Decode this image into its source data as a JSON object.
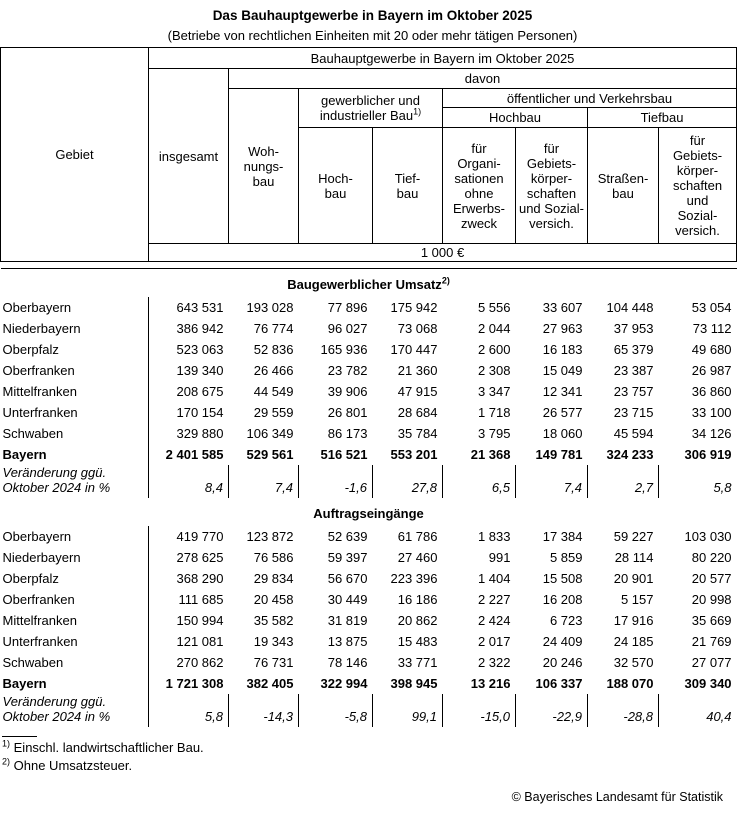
{
  "page": {
    "title": "Das Bauhauptgewerbe in Bayern im Oktober 2025",
    "subtitle": "(Betriebe von rechtlichen Einheiten mit 20 oder mehr tätigen Personen)"
  },
  "table_header": {
    "gebiet": "Gebiet",
    "top_span": "Bauhauptgewerbe in Bayern im Oktober 2025",
    "davon": "davon",
    "insgesamt": "insgesamt",
    "wohnungsbau": "Woh-\nnungs-\nbau",
    "gewerblich_line1": "gewerblicher und",
    "gewerblich_line2": "industrieller Bau",
    "gewerblich_sup": "1)",
    "oeffentlich": "öffentlicher und Verkehrsbau",
    "hochbau_group": "Hochbau",
    "tiefbau_group": "Tiefbau",
    "hochbau": "Hoch-\nbau",
    "tiefbau": "Tief-\nbau",
    "fuer_organisationen": "für\nOrgani-\nsationen\nohne\nErwerbs-\nzweck",
    "fuer_gebiets_hochbau": "für Gebiets-\nkörper-\nschaften\nund Sozial-\nversich.",
    "strassenbau": "Straßen-\nbau",
    "fuer_gebiets_tiefbau": "für\nGebiets-\nkörper-\nschaften\nund\nSozial-\nversich.",
    "unit": "1 000 €"
  },
  "sections": [
    {
      "title": "Baugewerblicher Umsatz",
      "title_sup": "2)",
      "rows": [
        {
          "region": "Oberbayern",
          "bold": false,
          "values": [
            "643 531",
            "193 028",
            "77 896",
            "175 942",
            "5 556",
            "33 607",
            "104 448",
            "53 054"
          ]
        },
        {
          "region": "Niederbayern",
          "bold": false,
          "values": [
            "386 942",
            "76 774",
            "96 027",
            "73 068",
            "2 044",
            "27 963",
            "37 953",
            "73 112"
          ]
        },
        {
          "region": "Oberpfalz",
          "bold": false,
          "values": [
            "523 063",
            "52 836",
            "165 936",
            "170 447",
            "2 600",
            "16 183",
            "65 379",
            "49 680"
          ]
        },
        {
          "region": "Oberfranken",
          "bold": false,
          "values": [
            "139 340",
            "26 466",
            "23 782",
            "21 360",
            "2 308",
            "15 049",
            "23 387",
            "26 987"
          ]
        },
        {
          "region": "Mittelfranken",
          "bold": false,
          "values": [
            "208 675",
            "44 549",
            "39 906",
            "47 915",
            "3 347",
            "12 341",
            "23 757",
            "36 860"
          ]
        },
        {
          "region": "Unterfranken",
          "bold": false,
          "values": [
            "170 154",
            "29 559",
            "26 801",
            "28 684",
            "1 718",
            "26 577",
            "23 715",
            "33 100"
          ]
        },
        {
          "region": "Schwaben",
          "bold": false,
          "values": [
            "329 880",
            "106 349",
            "86 173",
            "35 784",
            "3 795",
            "18 060",
            "45 594",
            "34 126"
          ]
        },
        {
          "region": "Bayern",
          "bold": true,
          "values": [
            "2 401 585",
            "529 561",
            "516 521",
            "553 201",
            "21 368",
            "149 781",
            "324 233",
            "306 919"
          ]
        }
      ],
      "change_label": "Veränderung ggü.\nOktober 2024 in %",
      "change_values": [
        "8,4",
        "7,4",
        "-1,6",
        "27,8",
        "6,5",
        "7,4",
        "2,7",
        "5,8"
      ]
    },
    {
      "title": "Auftragseingänge",
      "title_sup": "",
      "rows": [
        {
          "region": "Oberbayern",
          "bold": false,
          "values": [
            "419 770",
            "123 872",
            "52 639",
            "61 786",
            "1 833",
            "17 384",
            "59 227",
            "103 030"
          ]
        },
        {
          "region": "Niederbayern",
          "bold": false,
          "values": [
            "278 625",
            "76 586",
            "59 397",
            "27 460",
            "991",
            "5 859",
            "28 114",
            "80 220"
          ]
        },
        {
          "region": "Oberpfalz",
          "bold": false,
          "values": [
            "368 290",
            "29 834",
            "56 670",
            "223 396",
            "1 404",
            "15 508",
            "20 901",
            "20 577"
          ]
        },
        {
          "region": "Oberfranken",
          "bold": false,
          "values": [
            "111 685",
            "20 458",
            "30 449",
            "16 186",
            "2 227",
            "16 208",
            "5 157",
            "20 998"
          ]
        },
        {
          "region": "Mittelfranken",
          "bold": false,
          "values": [
            "150 994",
            "35 582",
            "31 819",
            "20 862",
            "2 424",
            "6 723",
            "17 916",
            "35 669"
          ]
        },
        {
          "region": "Unterfranken",
          "bold": false,
          "values": [
            "121 081",
            "19 343",
            "13 875",
            "15 483",
            "2 017",
            "24 409",
            "24 185",
            "21 769"
          ]
        },
        {
          "region": "Schwaben",
          "bold": false,
          "values": [
            "270 862",
            "76 731",
            "78 146",
            "33 771",
            "2 322",
            "20 246",
            "32 570",
            "27 077"
          ]
        },
        {
          "region": "Bayern",
          "bold": true,
          "values": [
            "1 721 308",
            "382 405",
            "322 994",
            "398 945",
            "13 216",
            "106 337",
            "188 070",
            "309 340"
          ]
        }
      ],
      "change_label": "Veränderung ggü.\nOktober 2024 in %",
      "change_values": [
        "5,8",
        "-14,3",
        "-5,8",
        "99,1",
        "-15,0",
        "-22,9",
        "-28,8",
        "40,4"
      ]
    }
  ],
  "footnotes": [
    {
      "sup": "1)",
      "text": "Einschl. landwirtschaftlicher Bau."
    },
    {
      "sup": "2)",
      "text": "Ohne Umsatzsteuer."
    }
  ],
  "copyright": "© Bayerisches Landesamt für Statistik"
}
